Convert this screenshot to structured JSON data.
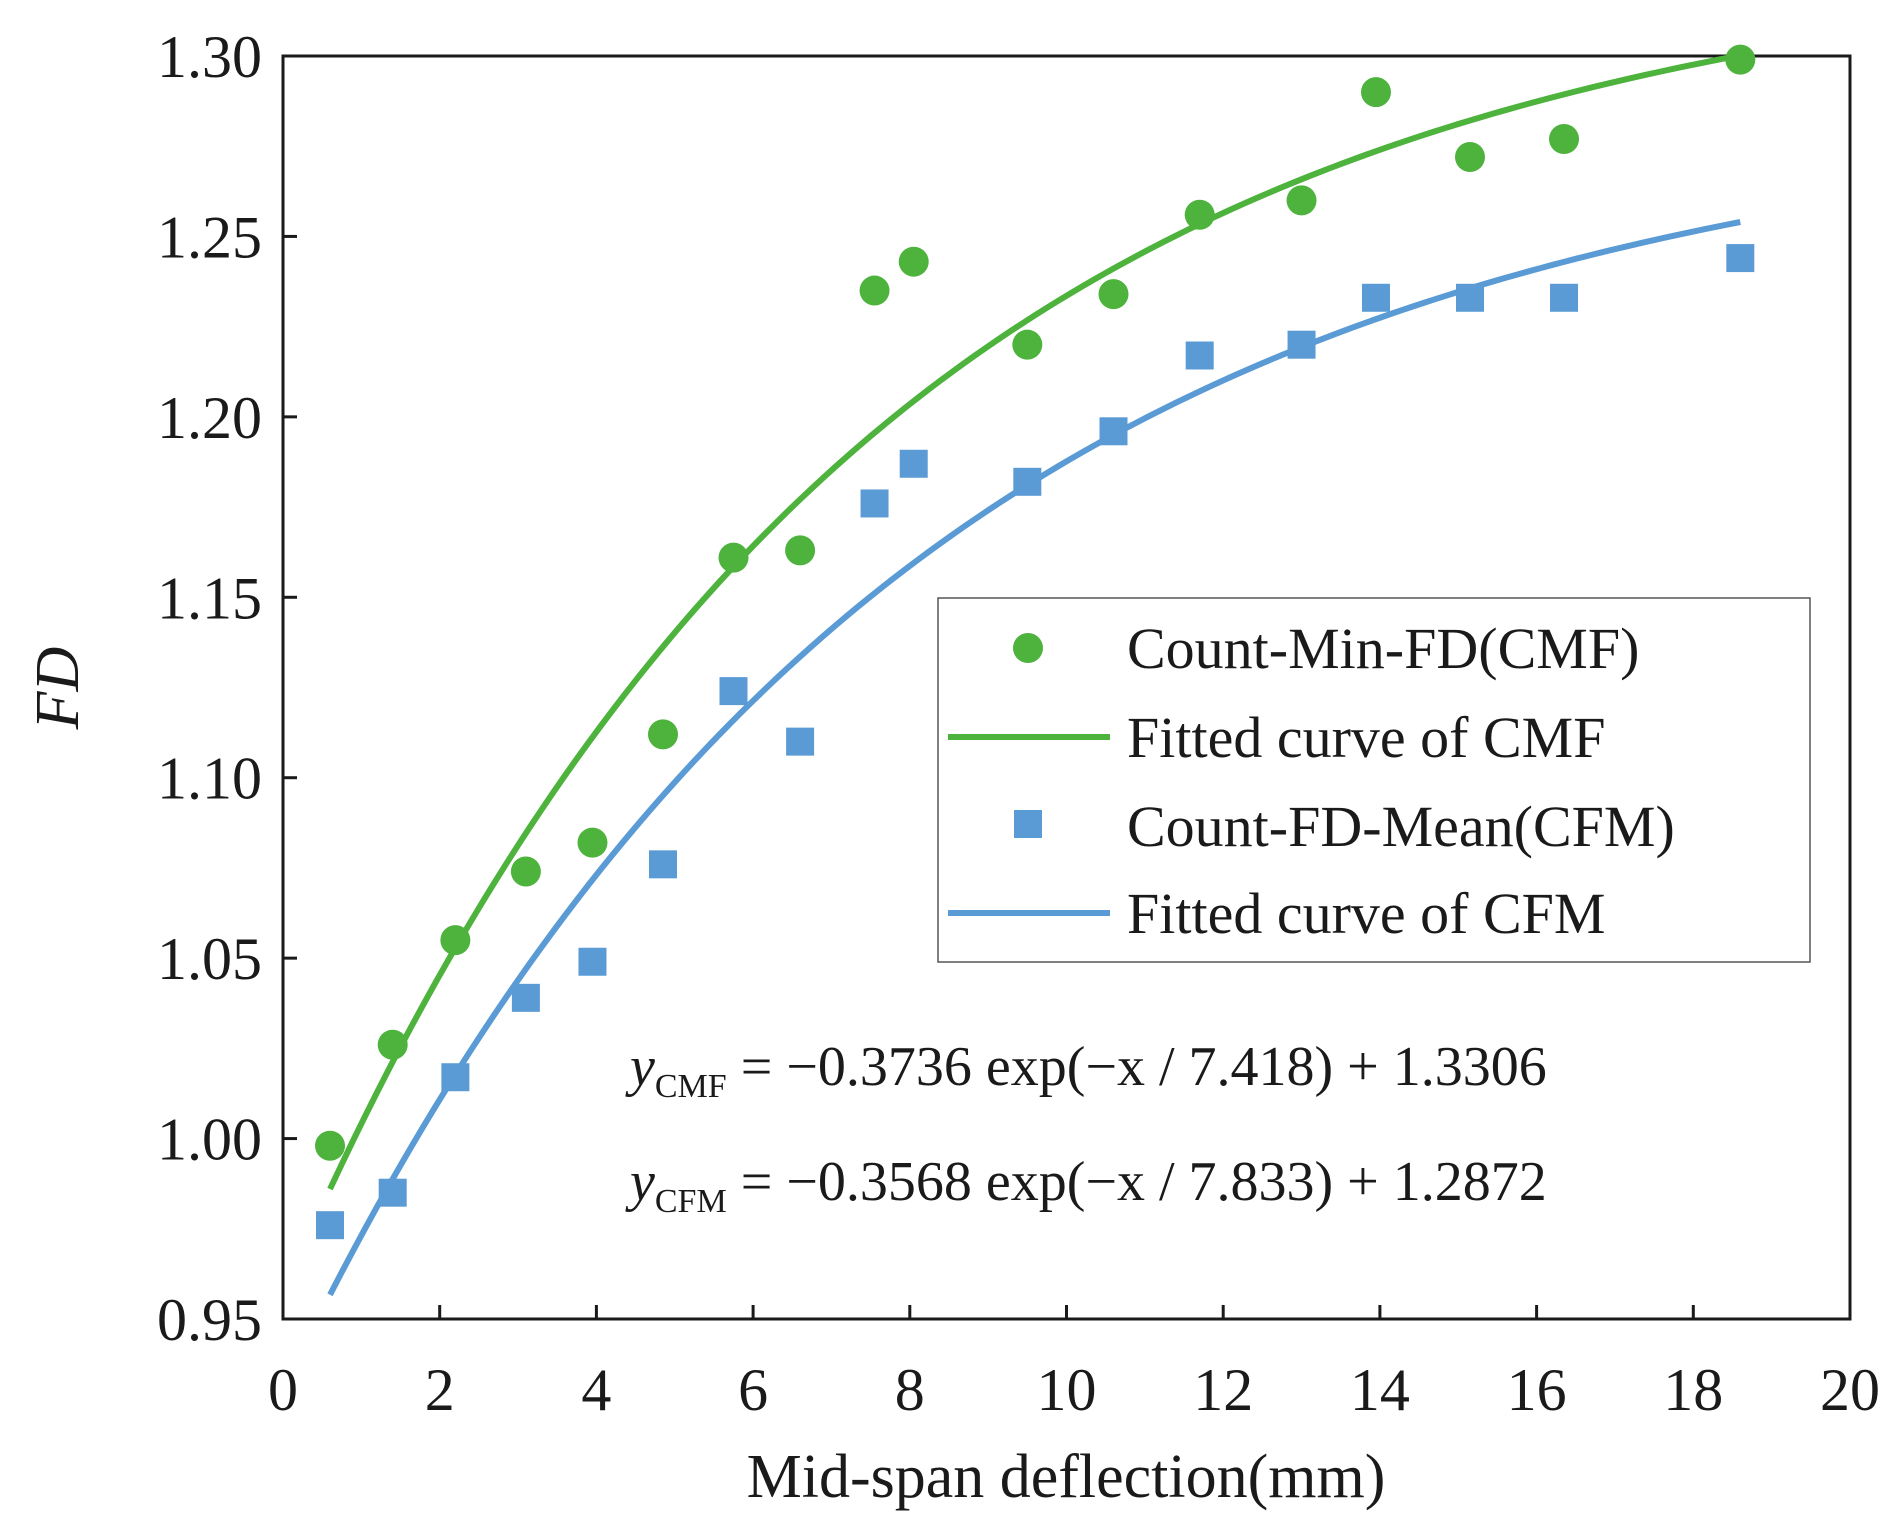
{
  "chart_data": {
    "type": "scatter",
    "xlabel": "Mid-span deflection(mm)",
    "ylabel": "FD",
    "xlim": [
      0,
      20
    ],
    "ylim": [
      0.95,
      1.3
    ],
    "x_ticks": [
      0,
      2,
      4,
      6,
      8,
      10,
      12,
      14,
      16,
      18,
      20
    ],
    "x_tick_labels": [
      "0",
      "2",
      "4",
      "6",
      "8",
      "10",
      "12",
      "14",
      "16",
      "18",
      "20"
    ],
    "y_ticks": [
      0.95,
      1.0,
      1.05,
      1.1,
      1.15,
      1.2,
      1.25,
      1.3
    ],
    "y_tick_labels": [
      "0.95",
      "1.00",
      "1.05",
      "1.10",
      "1.15",
      "1.20",
      "1.25",
      "1.30"
    ],
    "grid": false,
    "legend_position": "center-right",
    "series": [
      {
        "name": "Count-Min-FD(CMF)",
        "kind": "scatter",
        "marker": "circle",
        "color": "#4db33d",
        "x": [
          0.6,
          1.4,
          2.2,
          3.1,
          3.95,
          4.85,
          5.75,
          6.6,
          7.55,
          8.05,
          9.5,
          10.6,
          11.7,
          13.0,
          13.95,
          15.15,
          16.35,
          18.6
        ],
        "y": [
          0.998,
          1.026,
          1.055,
          1.074,
          1.082,
          1.112,
          1.161,
          1.163,
          1.235,
          1.243,
          1.22,
          1.234,
          1.256,
          1.26,
          1.29,
          1.272,
          1.277,
          1.299
        ]
      },
      {
        "name": "Fitted curve of CMF",
        "kind": "line",
        "color": "#4db33d",
        "equation": {
          "a": -0.3736,
          "t": 7.418,
          "c": 1.3306
        },
        "x_range": [
          0.6,
          18.6
        ]
      },
      {
        "name": "Count-FD-Mean(CFM)",
        "kind": "scatter",
        "marker": "square",
        "color": "#5b9bd5",
        "x": [
          0.6,
          1.4,
          2.2,
          3.1,
          3.95,
          4.85,
          5.75,
          6.6,
          7.55,
          8.05,
          9.5,
          10.6,
          11.7,
          13.0,
          13.95,
          15.15,
          16.35,
          18.6
        ],
        "y": [
          0.976,
          0.985,
          1.017,
          1.039,
          1.049,
          1.076,
          1.124,
          1.11,
          1.176,
          1.187,
          1.182,
          1.196,
          1.217,
          1.22,
          1.233,
          1.233,
          1.233,
          1.244
        ]
      },
      {
        "name": "Fitted curve of CFM",
        "kind": "line",
        "color": "#5b9bd5",
        "equation": {
          "a": -0.3568,
          "t": 7.833,
          "c": 1.2872
        },
        "x_range": [
          0.6,
          18.6
        ]
      }
    ],
    "annotations": [
      {
        "var": "y",
        "sub": "CMF",
        "rhs": "= −0.3736 exp(−x / 7.418) + 1.3306"
      },
      {
        "var": "y",
        "sub": "CFM",
        "rhs": "= −0.3568 exp(−x / 7.833) + 1.2872"
      }
    ]
  }
}
